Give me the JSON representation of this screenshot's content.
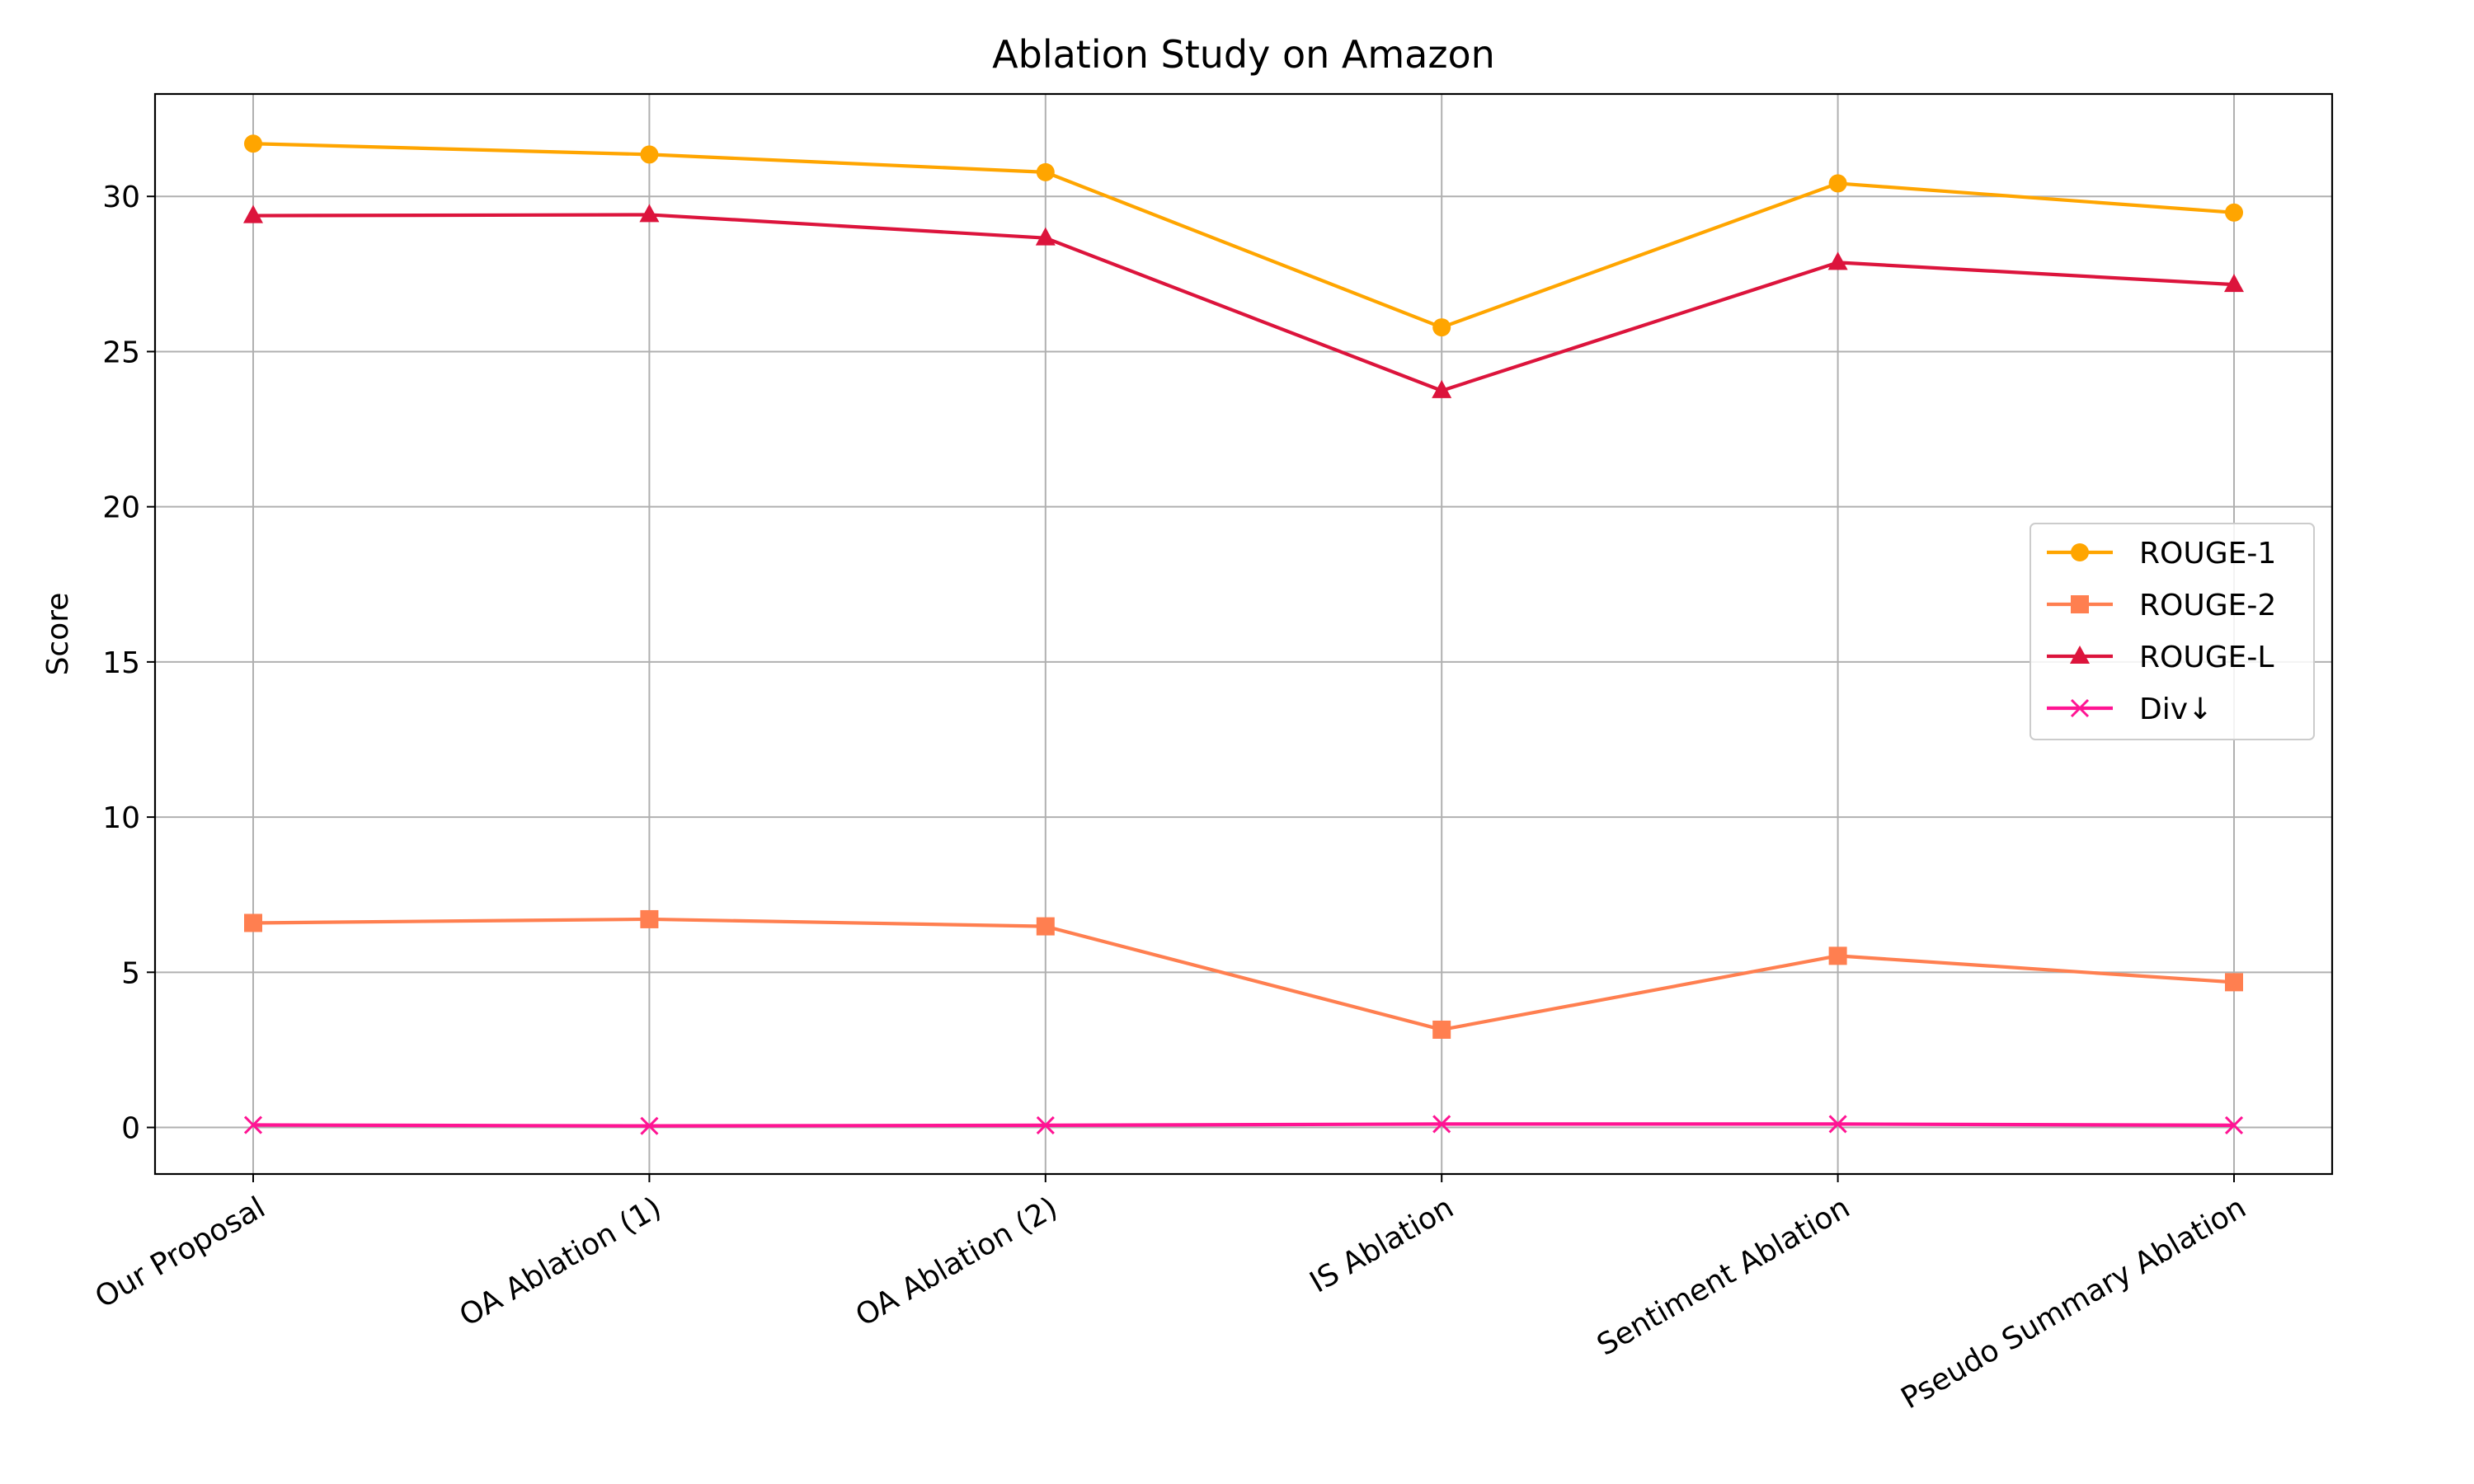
{
  "chart_data": {
    "type": "line",
    "title": "Ablation Study on Amazon",
    "xlabel": "",
    "ylabel": "Score",
    "categories": [
      "Our Proposal",
      "OA Ablation (1)",
      "OA Ablation (2)",
      "IS Ablation",
      "Sentiment Ablation",
      "Pseudo Summary Ablation"
    ],
    "ylim": [
      -1.5,
      33.3
    ],
    "yticks": [
      0,
      5,
      10,
      15,
      20,
      25,
      30
    ],
    "grid": true,
    "legend_position": "center-right",
    "series": [
      {
        "name": "ROUGE-1",
        "color": "#FFA500",
        "marker": "circle",
        "values": [
          31.7,
          31.35,
          30.78,
          25.78,
          30.42,
          29.48
        ]
      },
      {
        "name": "ROUGE-2",
        "color": "#FF7F50",
        "marker": "square",
        "values": [
          6.59,
          6.71,
          6.48,
          3.15,
          5.53,
          4.68
        ]
      },
      {
        "name": "ROUGE-L",
        "color": "#DC143C",
        "marker": "triangle",
        "values": [
          29.38,
          29.41,
          28.66,
          23.74,
          27.87,
          27.16
        ]
      },
      {
        "name": "Div↓",
        "color": "#FF1493",
        "marker": "x",
        "values": [
          0.08,
          0.05,
          0.07,
          0.11,
          0.11,
          0.07
        ]
      }
    ]
  }
}
